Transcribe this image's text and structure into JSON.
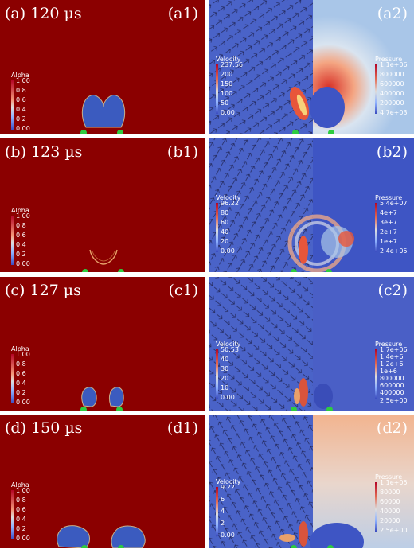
{
  "rows": [
    {
      "caption": "(a) 120 µs",
      "left_tag": "(a1)",
      "right_tag": "(a2)",
      "alpha_legend": {
        "title": "Alpha",
        "ticks": [
          "1.00",
          "0.8",
          "0.6",
          "0.4",
          "0.2",
          "0.00"
        ]
      },
      "velocity_legend": {
        "title": "Velocity",
        "ticks": [
          "237.56",
          "200",
          "150",
          "100",
          "50",
          "0.00"
        ]
      },
      "pressure_legend": {
        "title": "Pressure",
        "ticks": [
          "1.1e+06",
          "800000",
          "600000",
          "400000",
          "200000",
          "4.7e+03"
        ]
      }
    },
    {
      "caption": "(b) 123 µs",
      "left_tag": "(b1)",
      "right_tag": "(b2)",
      "alpha_legend": {
        "title": "Alpha",
        "ticks": [
          "1.00",
          "0.8",
          "0.6",
          "0.4",
          "0.2",
          "0.00"
        ]
      },
      "velocity_legend": {
        "title": "Velocity",
        "ticks": [
          "96.22",
          "80",
          "60",
          "40",
          "20",
          "0.00"
        ]
      },
      "pressure_legend": {
        "title": "Pressure",
        "ticks": [
          "5.4e+07",
          "4e+7",
          "3e+7",
          "2e+7",
          "1e+7",
          "2.4e+05"
        ]
      }
    },
    {
      "caption": "(c) 127 µs",
      "left_tag": "(c1)",
      "right_tag": "(c2)",
      "alpha_legend": {
        "title": "Alpha",
        "ticks": [
          "1.00",
          "0.8",
          "0.6",
          "0.4",
          "0.2",
          "0.00"
        ]
      },
      "velocity_legend": {
        "title": "Velocity",
        "ticks": [
          "50.53",
          "40",
          "30",
          "20",
          "10",
          "0.00"
        ]
      },
      "pressure_legend": {
        "title": "Pressure",
        "ticks": [
          "1.7e+06",
          "1.4e+6",
          "1.2e+6",
          "1e+6",
          "800000",
          "600000",
          "400000",
          "2.5e+00"
        ]
      }
    },
    {
      "caption": "(d) 150 µs",
      "left_tag": "(d1)",
      "right_tag": "(d2)",
      "alpha_legend": {
        "title": "Alpha",
        "ticks": [
          "1.00",
          "0.8",
          "0.6",
          "0.4",
          "0.2",
          "0.00"
        ]
      },
      "velocity_legend": {
        "title": "Velocity",
        "ticks": [
          "9.22",
          "6",
          "4",
          "2",
          "0.00"
        ]
      },
      "pressure_legend": {
        "title": "Pressure",
        "ticks": [
          "1.1e+05",
          "80000",
          "60000",
          "40000",
          "20000",
          "2.5e+00"
        ]
      }
    }
  ],
  "colors": {
    "liquid": "#8b0000",
    "bubble": "#3b5bbf",
    "marker": "#2ecc40",
    "velocity_bg": "#4a63c8",
    "pressure_bg_low": "#3e55c4"
  }
}
